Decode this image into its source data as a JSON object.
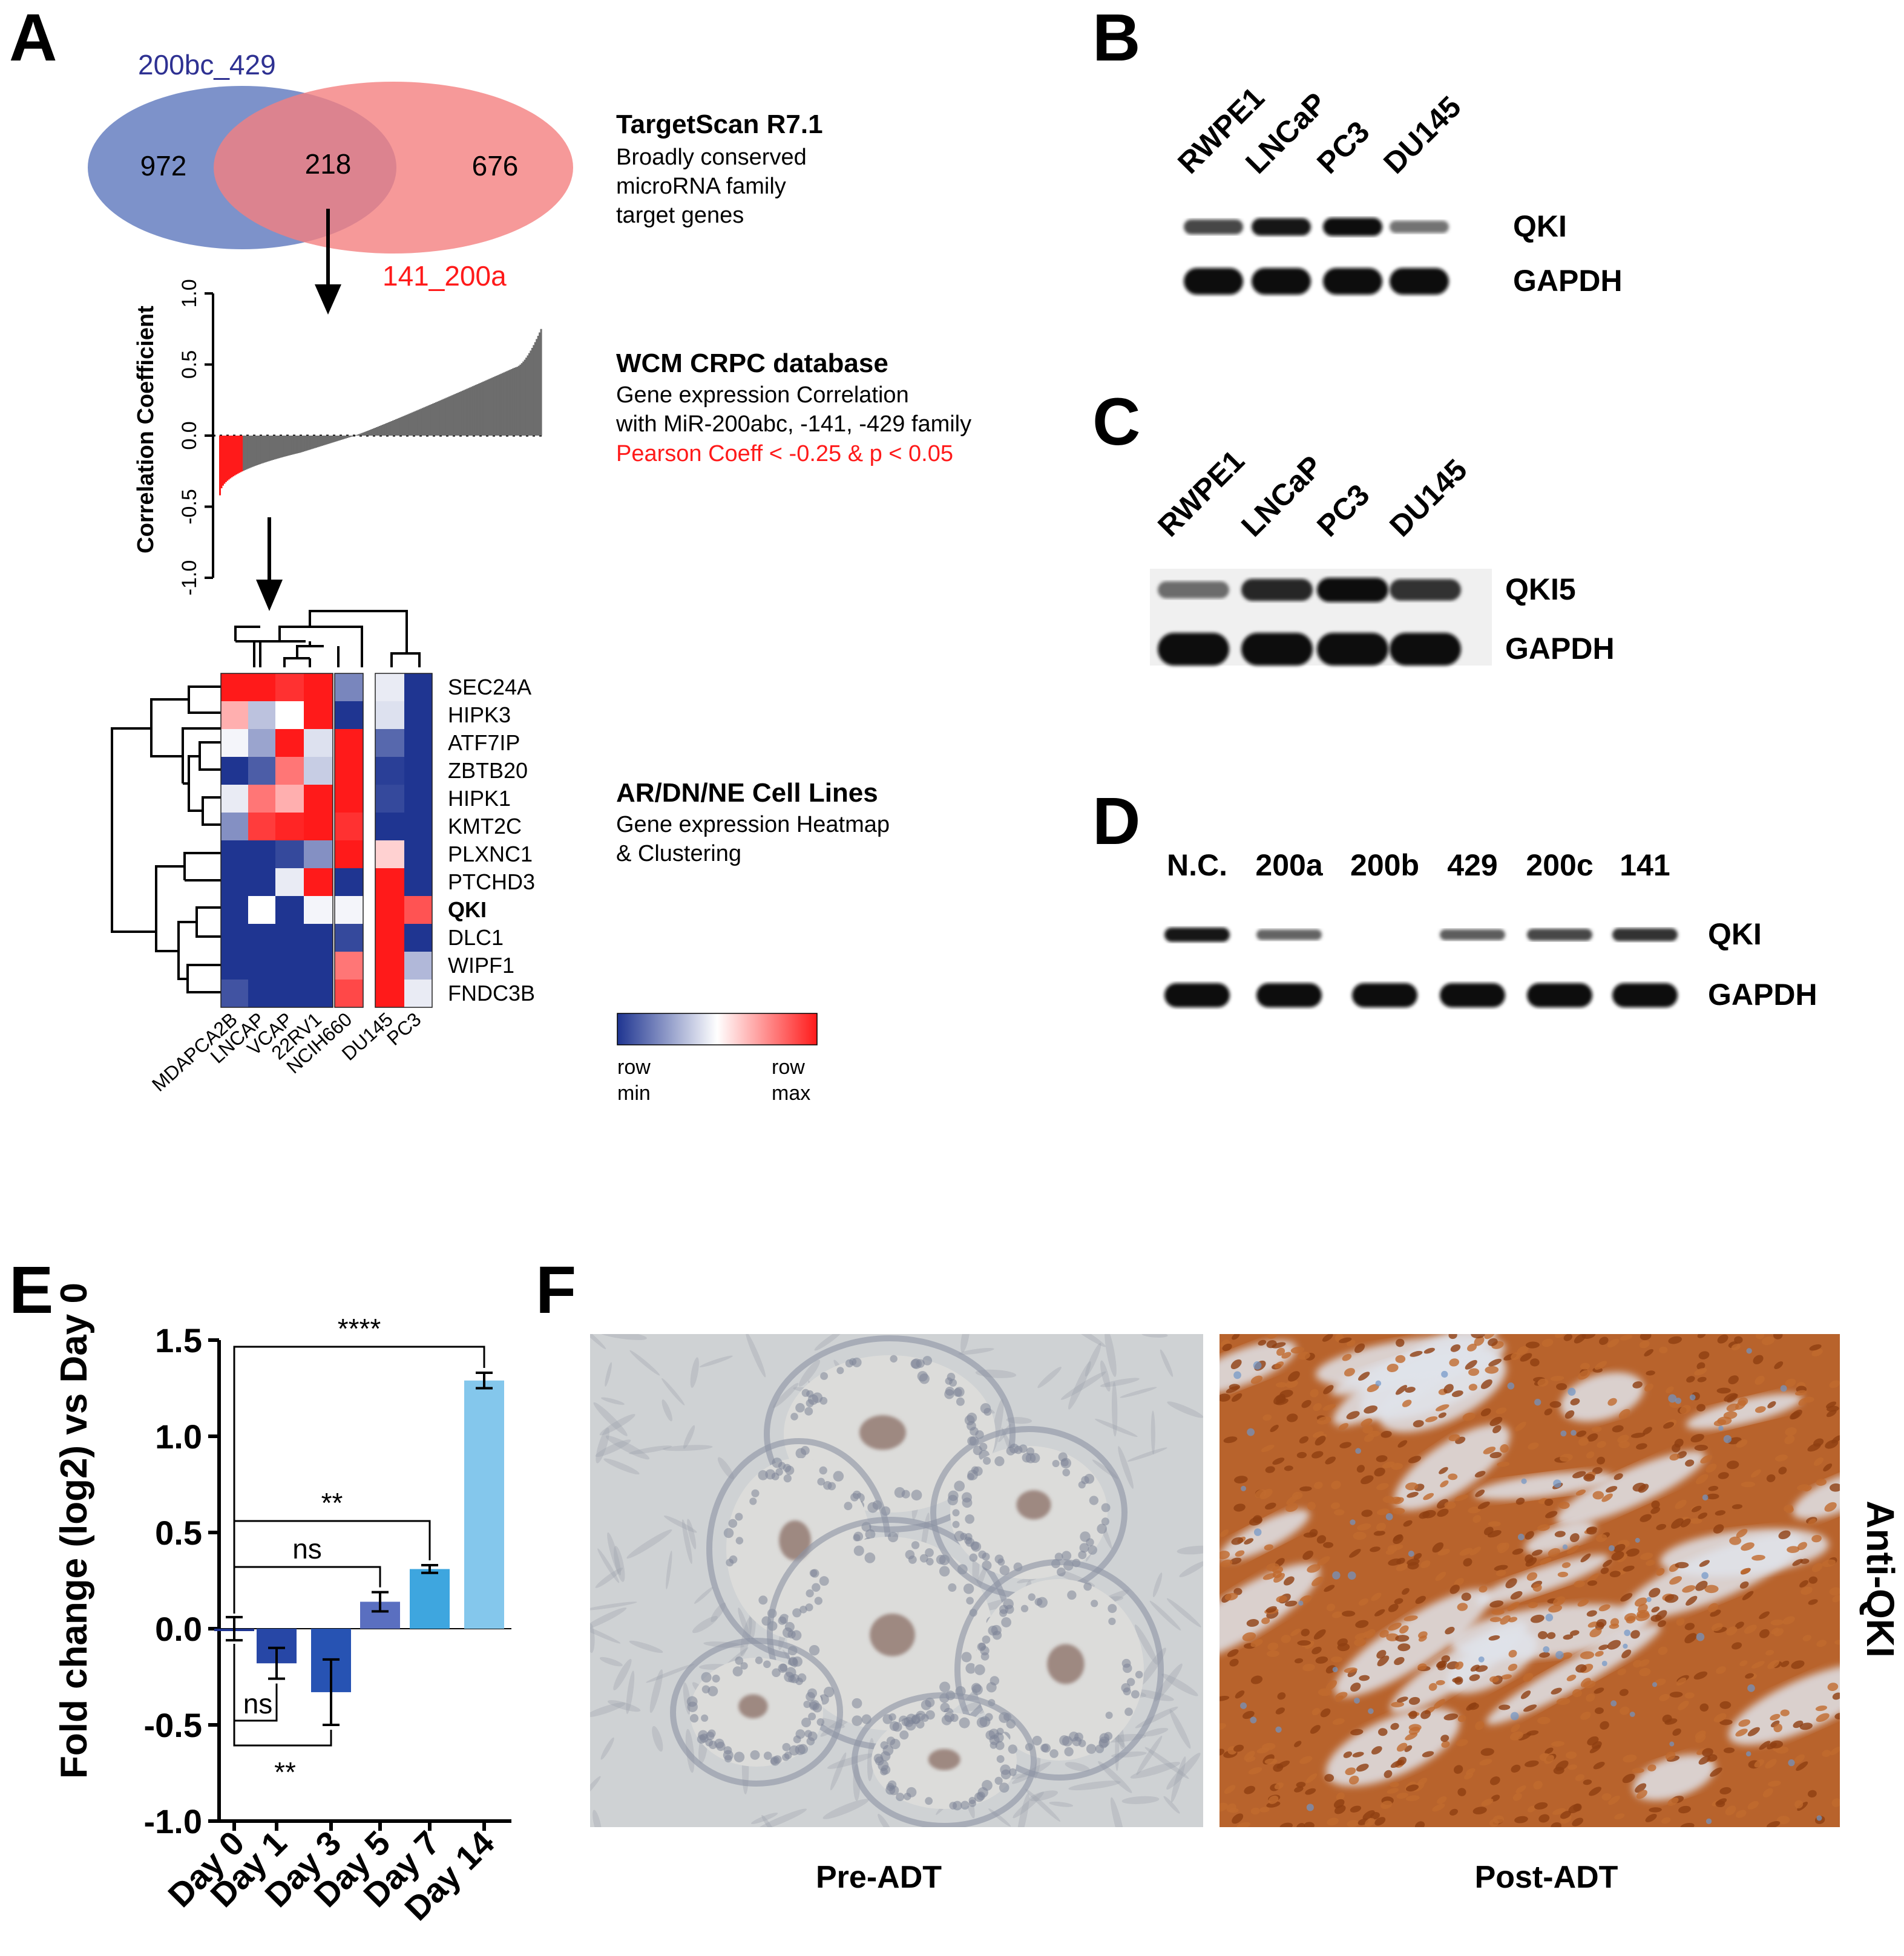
{
  "panels": {
    "A": "A",
    "B": "B",
    "C": "C",
    "D": "D",
    "E": "E",
    "F": "F"
  },
  "venn": {
    "left_label": "200bc_429",
    "right_label": "141_200a",
    "left_only": "972",
    "overlap": "218",
    "right_only": "676",
    "left_color": "#6f86c4",
    "right_color": "#f4807f"
  },
  "annotations": {
    "targetscan": {
      "title": "TargetScan R7.1",
      "lines": [
        "Broadly conserved",
        "microRNA family",
        "target genes"
      ]
    },
    "wcm": {
      "title": "WCM CRPC database",
      "lines": [
        "Gene expression Correlation",
        "with MiR-200abc, -141, -429 family"
      ],
      "criterion": "Pearson Coeff < -0.25 & p < 0.05"
    },
    "cell_lines": {
      "title": "AR/DN/NE Cell Lines",
      "lines": [
        "Gene expression Heatmap",
        "& Clustering"
      ]
    }
  },
  "correlation_plot": {
    "ylabel": "Correlation Coefficient",
    "yticks": [
      "1.0",
      "0.5",
      "0.0",
      "-0.5",
      "-1.0"
    ],
    "ylim": [
      -1.0,
      1.0
    ],
    "threshold": -0.25,
    "n_genes": 218,
    "min_value": -0.42,
    "max_value": 0.75,
    "negative_color": "#ff1a1a",
    "bar_color": "#6d6d6d"
  },
  "heatmap": {
    "genes": [
      "SEC24A",
      "HIPK3",
      "ATF7IP",
      "ZBTB20",
      "HIPK1",
      "KMT2C",
      "PLXNC1",
      "PTCHD3",
      "QKI",
      "DLC1",
      "WIPF1",
      "FNDC3B"
    ],
    "highlight_gene": "QKI",
    "cell_lines": [
      "MDAPCA2B",
      "LNCAP",
      "VCAP",
      "22RV1",
      "NCIH660",
      "DU145",
      "PC3"
    ],
    "values": [
      [
        1.0,
        1.0,
        0.9,
        1.0,
        -0.6,
        -0.1,
        -1.0
      ],
      [
        0.35,
        -0.3,
        0.0,
        1.0,
        -1.0,
        -0.15,
        -1.0
      ],
      [
        -0.05,
        -0.45,
        1.0,
        -0.15,
        1.0,
        -0.75,
        -1.0
      ],
      [
        -1.0,
        -0.8,
        0.6,
        -0.25,
        1.0,
        -0.95,
        -1.0
      ],
      [
        -0.1,
        0.6,
        0.35,
        1.0,
        1.0,
        -0.9,
        -1.0
      ],
      [
        -0.55,
        0.85,
        0.95,
        1.0,
        0.9,
        -1.0,
        -1.0
      ],
      [
        -1.0,
        -1.0,
        -0.9,
        -0.55,
        1.0,
        0.2,
        -1.0
      ],
      [
        -1.0,
        -1.0,
        -0.1,
        1.0,
        -1.0,
        1.0,
        -1.0
      ],
      [
        -1.0,
        0.0,
        -1.0,
        -0.05,
        -0.05,
        1.0,
        0.75
      ],
      [
        -1.0,
        -1.0,
        -1.0,
        -1.0,
        -0.9,
        1.0,
        -1.0
      ],
      [
        -1.0,
        -1.0,
        -1.0,
        -1.0,
        0.6,
        1.0,
        -0.35
      ],
      [
        -0.85,
        -1.0,
        -1.0,
        -1.0,
        0.8,
        1.0,
        -0.1
      ]
    ],
    "min_color": "#1f3591",
    "mid_color": "#ffffff",
    "max_color": "#ff1a1a",
    "legend": {
      "left_top": "row",
      "left_bottom": "min",
      "right_top": "row",
      "right_bottom": "max"
    }
  },
  "blot_B": {
    "lanes": [
      "RWPE1",
      "LNCaP",
      "PC3",
      "DU145"
    ],
    "bands": [
      {
        "label": "QKI",
        "intensities": [
          0.6,
          0.9,
          1.0,
          0.3
        ]
      },
      {
        "label": "GAPDH",
        "intensities": [
          1.0,
          1.0,
          1.0,
          1.0
        ]
      }
    ]
  },
  "blot_C": {
    "lanes": [
      "RWPE1",
      "LNCaP",
      "PC3",
      "DU145"
    ],
    "bands": [
      {
        "label": "QKI5",
        "intensities": [
          0.35,
          0.8,
          1.0,
          0.75
        ]
      },
      {
        "label": "GAPDH",
        "intensities": [
          1.0,
          1.0,
          1.0,
          1.0
        ]
      }
    ]
  },
  "blot_D": {
    "lanes": [
      "N.C.",
      "200a",
      "200b",
      "429",
      "200c",
      "141"
    ],
    "bands": [
      {
        "label": "QKI",
        "intensities": [
          0.95,
          0.4,
          0.0,
          0.45,
          0.6,
          0.75
        ]
      },
      {
        "label": "GAPDH",
        "intensities": [
          1.0,
          1.0,
          1.0,
          1.0,
          1.0,
          1.0
        ]
      }
    ]
  },
  "chart_data": {
    "type": "bar",
    "title": "",
    "ylabel": "Fold change (log2) vs Day 0",
    "xlabel": "",
    "categories": [
      "Day 0",
      "Day 1",
      "Day 3",
      "Day 5",
      "Day 7",
      "Day 14"
    ],
    "values": [
      0.0,
      -0.18,
      -0.33,
      0.14,
      0.31,
      1.29
    ],
    "errors": [
      0.06,
      0.08,
      0.17,
      0.05,
      0.02,
      0.04
    ],
    "colors": [
      "#1f3591",
      "#2747a6",
      "#2753b3",
      "#5a6fc0",
      "#3ea6df",
      "#84c7ec"
    ],
    "ylim": [
      -1.0,
      1.5
    ],
    "yticks": [
      "-1.0",
      "-0.5",
      "0.0",
      "0.5",
      "1.0",
      "1.5"
    ],
    "significance": [
      {
        "from": "Day 0",
        "to": "Day 14",
        "label": "****"
      },
      {
        "from": "Day 0",
        "to": "Day 7",
        "label": "**"
      },
      {
        "from": "Day 0",
        "to": "Day 5",
        "label": "ns"
      },
      {
        "from": "Day 0",
        "to": "Day 1",
        "label": "ns"
      },
      {
        "from": "Day 0",
        "to": "Day 3",
        "label": "**"
      }
    ]
  },
  "histology": {
    "left_caption": "Pre-ADT",
    "right_caption": "Post-ADT",
    "side_label": "Anti-QKI",
    "left_stain_color": "#cfd2d4",
    "right_stain_color": "#b8632c"
  }
}
